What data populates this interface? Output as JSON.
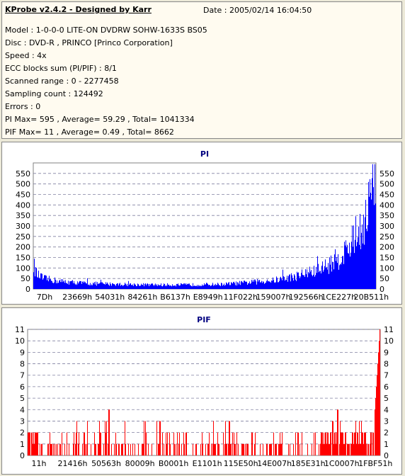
{
  "app": {
    "title": "KProbe v2.4.2 - Designed by Karr",
    "date": "Date : 2005/02/14 16:04:50"
  },
  "info": {
    "model": "Model : 1-0-0-0 LITE-ON DVDRW SOHW-1633S BS05",
    "disc": "Disc : DVD-R , PRINCO [Princo Corporation]",
    "speed": "Speed : 4x",
    "ecc": "ECC blocks sum (PI/PIF) : 8/1",
    "scanned": "Scanned range : 0 - 2277458",
    "sampling": "Sampling count : 124492",
    "errors": "Errors : 0",
    "pi_stats": "PI Max= 595 , Average= 59.29 , Total= 1041334",
    "pif_stats": "PIF Max= 11 , Average= 0.49 , Total= 8662"
  },
  "colors": {
    "pi_bar": "#0000ff",
    "pif_bar": "#ff0000",
    "grid": "#8080a0",
    "plot_bg": "#ffffff",
    "title": "#000080"
  },
  "chart_data": [
    {
      "type": "bar",
      "title": "PI",
      "ylim": [
        0,
        600
      ],
      "yticks": [
        0,
        50,
        100,
        150,
        200,
        250,
        300,
        350,
        400,
        450,
        500,
        550
      ],
      "xtick_labels": [
        "7Dh",
        "23669h",
        "54031h",
        "84261h",
        "B6137h",
        "E8949h",
        "11F022h",
        "159007h",
        "192566h",
        "1CE227h",
        "20B511h"
      ],
      "grid": true,
      "profile_x": [
        0,
        0.01,
        0.03,
        0.08,
        0.15,
        0.25,
        0.35,
        0.45,
        0.55,
        0.62,
        0.7,
        0.76,
        0.82,
        0.86,
        0.9,
        0.93,
        0.95,
        0.97,
        0.985,
        1.0
      ],
      "profile_y": [
        130,
        75,
        55,
        40,
        30,
        25,
        22,
        22,
        25,
        33,
        45,
        65,
        90,
        125,
        175,
        240,
        305,
        380,
        480,
        595
      ]
    },
    {
      "type": "bar",
      "title": "PIF",
      "ylim": [
        0,
        11
      ],
      "yticks": [
        0,
        1,
        2,
        3,
        4,
        5,
        6,
        7,
        8,
        9,
        10,
        11
      ],
      "xtick_labels": [
        "11h",
        "21416h",
        "50563h",
        "80009h",
        "B0001h",
        "E1101h",
        "115E50h",
        "14E007h",
        "185E31h",
        "1C0007h",
        "1FBF51h"
      ],
      "grid": true,
      "max": 11
    }
  ]
}
